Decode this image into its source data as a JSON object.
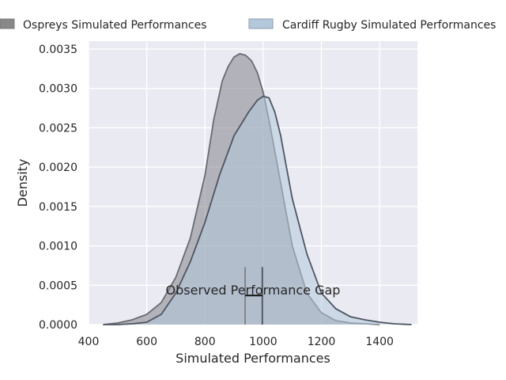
{
  "chart_data": {
    "type": "area",
    "xlabel": "Simulated Performances",
    "ylabel": "Density",
    "xlim": [
      400,
      1530
    ],
    "ylim": [
      0,
      0.0036
    ],
    "x_ticks": [
      400,
      600,
      800,
      1000,
      1200,
      1400
    ],
    "x_tick_labels": [
      "400",
      "600",
      "800",
      "1000",
      "1200",
      "1400"
    ],
    "y_ticks": [
      0,
      0.0005,
      0.001,
      0.0015,
      0.002,
      0.0025,
      0.003,
      0.0035
    ],
    "y_tick_labels": [
      "0.0000",
      "0.0005",
      "0.0010",
      "0.0015",
      "0.0020",
      "0.0025",
      "0.0030",
      "0.0035"
    ],
    "grid": true,
    "legend_position": "top, outside plot",
    "series": [
      {
        "name": "Ospreys Simulated Performances",
        "color": "#7f7f7f",
        "x": [
          450,
          500,
          550,
          600,
          650,
          700,
          750,
          800,
          830,
          860,
          880,
          900,
          920,
          940,
          960,
          980,
          1000,
          1020,
          1050,
          1080,
          1100,
          1150,
          1200,
          1250,
          1300,
          1350,
          1400
        ],
        "y": [
          0.0,
          2e-05,
          6e-05,
          0.00013,
          0.00028,
          0.0006,
          0.0011,
          0.0019,
          0.0026,
          0.0031,
          0.00328,
          0.0034,
          0.00344,
          0.00342,
          0.00335,
          0.0032,
          0.00295,
          0.0026,
          0.002,
          0.0014,
          0.001,
          0.0004,
          0.00015,
          5e-05,
          2e-05,
          1e-05,
          0.0
        ]
      },
      {
        "name": "Cardiff Rugby Simulated Performances",
        "color": "#b4c8dc",
        "x": [
          450,
          500,
          550,
          600,
          650,
          700,
          750,
          800,
          850,
          900,
          950,
          980,
          1000,
          1020,
          1040,
          1060,
          1080,
          1100,
          1150,
          1200,
          1250,
          1300,
          1350,
          1400,
          1450,
          1510
        ],
        "y": [
          0.0,
          0.0,
          1e-05,
          3e-05,
          0.00013,
          0.0004,
          0.0008,
          0.0013,
          0.0019,
          0.0024,
          0.0027,
          0.00285,
          0.0029,
          0.00288,
          0.0027,
          0.0024,
          0.002,
          0.0016,
          0.0009,
          0.0004,
          0.0002,
          0.0001,
          6e-05,
          3e-05,
          1e-05,
          0.0
        ]
      }
    ],
    "observed_lines": [
      {
        "x": 938,
        "color": "#7f7f7f"
      },
      {
        "x": 997,
        "color": "#4a4f57"
      }
    ],
    "gap_bar": {
      "x_start": 938,
      "x_end": 997,
      "y": 0.00037
    },
    "annotation": {
      "text": "Observed Performance Gap",
      "x": 965,
      "y": 0.00043
    }
  }
}
